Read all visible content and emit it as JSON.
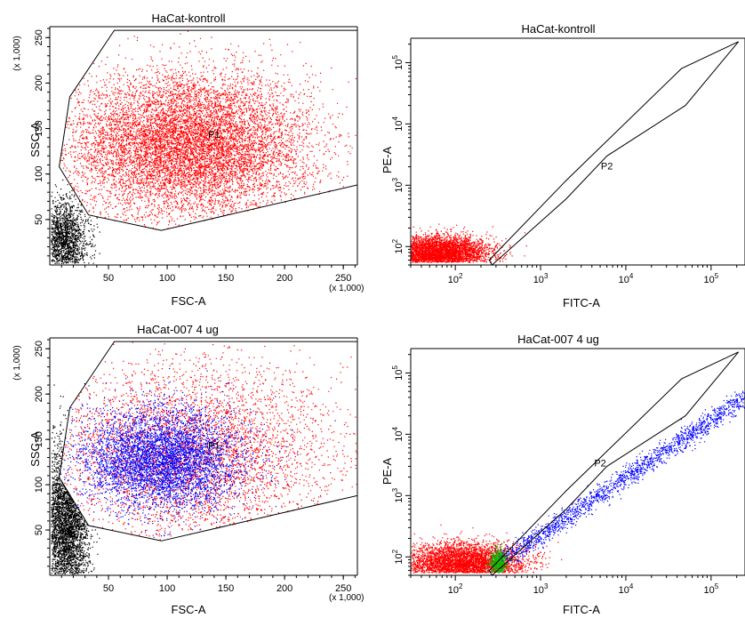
{
  "chart_data": [
    {
      "type": "scatter",
      "title": "HaCat-kontroll",
      "xlabel": "FSC-A",
      "ylabel": "SSC-A",
      "x_multiplier": "(x 1,000)",
      "y_multiplier": "(x 1,000)",
      "xlim": [
        0,
        262
      ],
      "ylim": [
        0,
        262
      ],
      "x_ticks": [
        50,
        100,
        150,
        200,
        250
      ],
      "y_ticks": [
        50,
        100,
        150,
        200,
        250
      ],
      "scale": "linear",
      "gate": {
        "name": "P1",
        "label_at": [
          140,
          140
        ],
        "polygon": [
          [
            8,
            108
          ],
          [
            17,
            185
          ],
          [
            55,
            258
          ],
          [
            262,
            258
          ],
          [
            262,
            88
          ],
          [
            95,
            38
          ],
          [
            33,
            55
          ]
        ]
      },
      "series": [
        {
          "color": "#ff0000",
          "points": 9000,
          "cx": 118,
          "cy": 132,
          "sx": 52,
          "sy": 40,
          "region": "inside_gate"
        },
        {
          "color": "#000000",
          "points": 1400,
          "cx": 12,
          "cy": 28,
          "sx": 10,
          "sy": 22,
          "region": "outside_gate"
        }
      ]
    },
    {
      "type": "scatter",
      "title": "HaCat-kontroll",
      "xlabel": "FITC-A",
      "ylabel": "PE-A",
      "scale": "log",
      "xlim": [
        30,
        250000
      ],
      "ylim": [
        50,
        250000
      ],
      "x_tick_labels": [
        "10^2",
        "10^3",
        "10^4",
        "10^5"
      ],
      "y_tick_labels": [
        "10^2",
        "10^3",
        "10^4",
        "10^5"
      ],
      "gate": {
        "name": "P2",
        "label_at": [
          6000,
          1800
        ],
        "polygon": [
          [
            270,
            50
          ],
          [
            2000,
            600
          ],
          [
            6000,
            3000
          ],
          [
            50000,
            20000
          ],
          [
            210000,
            220000
          ],
          [
            45000,
            80000
          ],
          [
            2000,
            1200
          ],
          [
            250,
            60
          ]
        ]
      },
      "series": [
        {
          "color": "#ff0000",
          "points": 3500,
          "cx_log": 1.8,
          "cy_log": 1.9,
          "sx_log": 0.3,
          "sy_log": 0.14
        }
      ]
    },
    {
      "type": "scatter",
      "title": "HaCat-007 4 ug",
      "xlabel": "FSC-A",
      "ylabel": "SSC-A",
      "x_multiplier": "(x 1,000)",
      "y_multiplier": "(x 1,000)",
      "xlim": [
        0,
        262
      ],
      "ylim": [
        0,
        262
      ],
      "x_ticks": [
        50,
        100,
        150,
        200,
        250
      ],
      "y_ticks": [
        50,
        100,
        150,
        200,
        250
      ],
      "scale": "linear",
      "gate": {
        "name": "P1",
        "label_at": [
          140,
          140
        ],
        "polygon": [
          [
            8,
            108
          ],
          [
            17,
            185
          ],
          [
            55,
            258
          ],
          [
            262,
            258
          ],
          [
            262,
            88
          ],
          [
            95,
            38
          ],
          [
            33,
            55
          ]
        ]
      },
      "series": [
        {
          "color": "#ff0000",
          "points": 4200,
          "cx": 120,
          "cy": 135,
          "sx": 60,
          "sy": 50,
          "region": "inside_gate"
        },
        {
          "color": "#0000ff",
          "points": 4800,
          "cx": 95,
          "cy": 128,
          "sx": 34,
          "sy": 28,
          "region": "inside_gate"
        },
        {
          "color": "#000000",
          "points": 2600,
          "cx": 14,
          "cy": 55,
          "sx": 10,
          "sy": 45,
          "region": "outside_gate"
        }
      ]
    },
    {
      "type": "scatter",
      "title": "HaCat-007 4 ug",
      "xlabel": "FITC-A",
      "ylabel": "PE-A",
      "scale": "log",
      "xlim": [
        30,
        250000
      ],
      "ylim": [
        50,
        250000
      ],
      "x_tick_labels": [
        "10^2",
        "10^3",
        "10^4",
        "10^5"
      ],
      "y_tick_labels": [
        "10^2",
        "10^3",
        "10^4",
        "10^5"
      ],
      "gate": {
        "name": "P2",
        "label_at": [
          5000,
          3000
        ],
        "polygon": [
          [
            270,
            50
          ],
          [
            2000,
            600
          ],
          [
            6000,
            3000
          ],
          [
            50000,
            20000
          ],
          [
            210000,
            220000
          ],
          [
            45000,
            80000
          ],
          [
            2000,
            1200
          ],
          [
            250,
            60
          ]
        ]
      },
      "series": [
        {
          "color": "#ff0000",
          "points": 3800,
          "cx_log": 2.1,
          "cy_log": 1.9,
          "sx_log": 0.35,
          "sy_log": 0.16
        },
        {
          "color": "#0000ff",
          "points": 1800,
          "trend_from_log": [
            2.55,
            1.95
          ],
          "trend_to_log": [
            5.5,
            4.7
          ],
          "spread_log": 0.07
        },
        {
          "color": "#00c000",
          "points": 400,
          "cx_log": 2.5,
          "cy_log": 1.92,
          "sx_log": 0.05,
          "sy_log": 0.1
        }
      ]
    }
  ]
}
